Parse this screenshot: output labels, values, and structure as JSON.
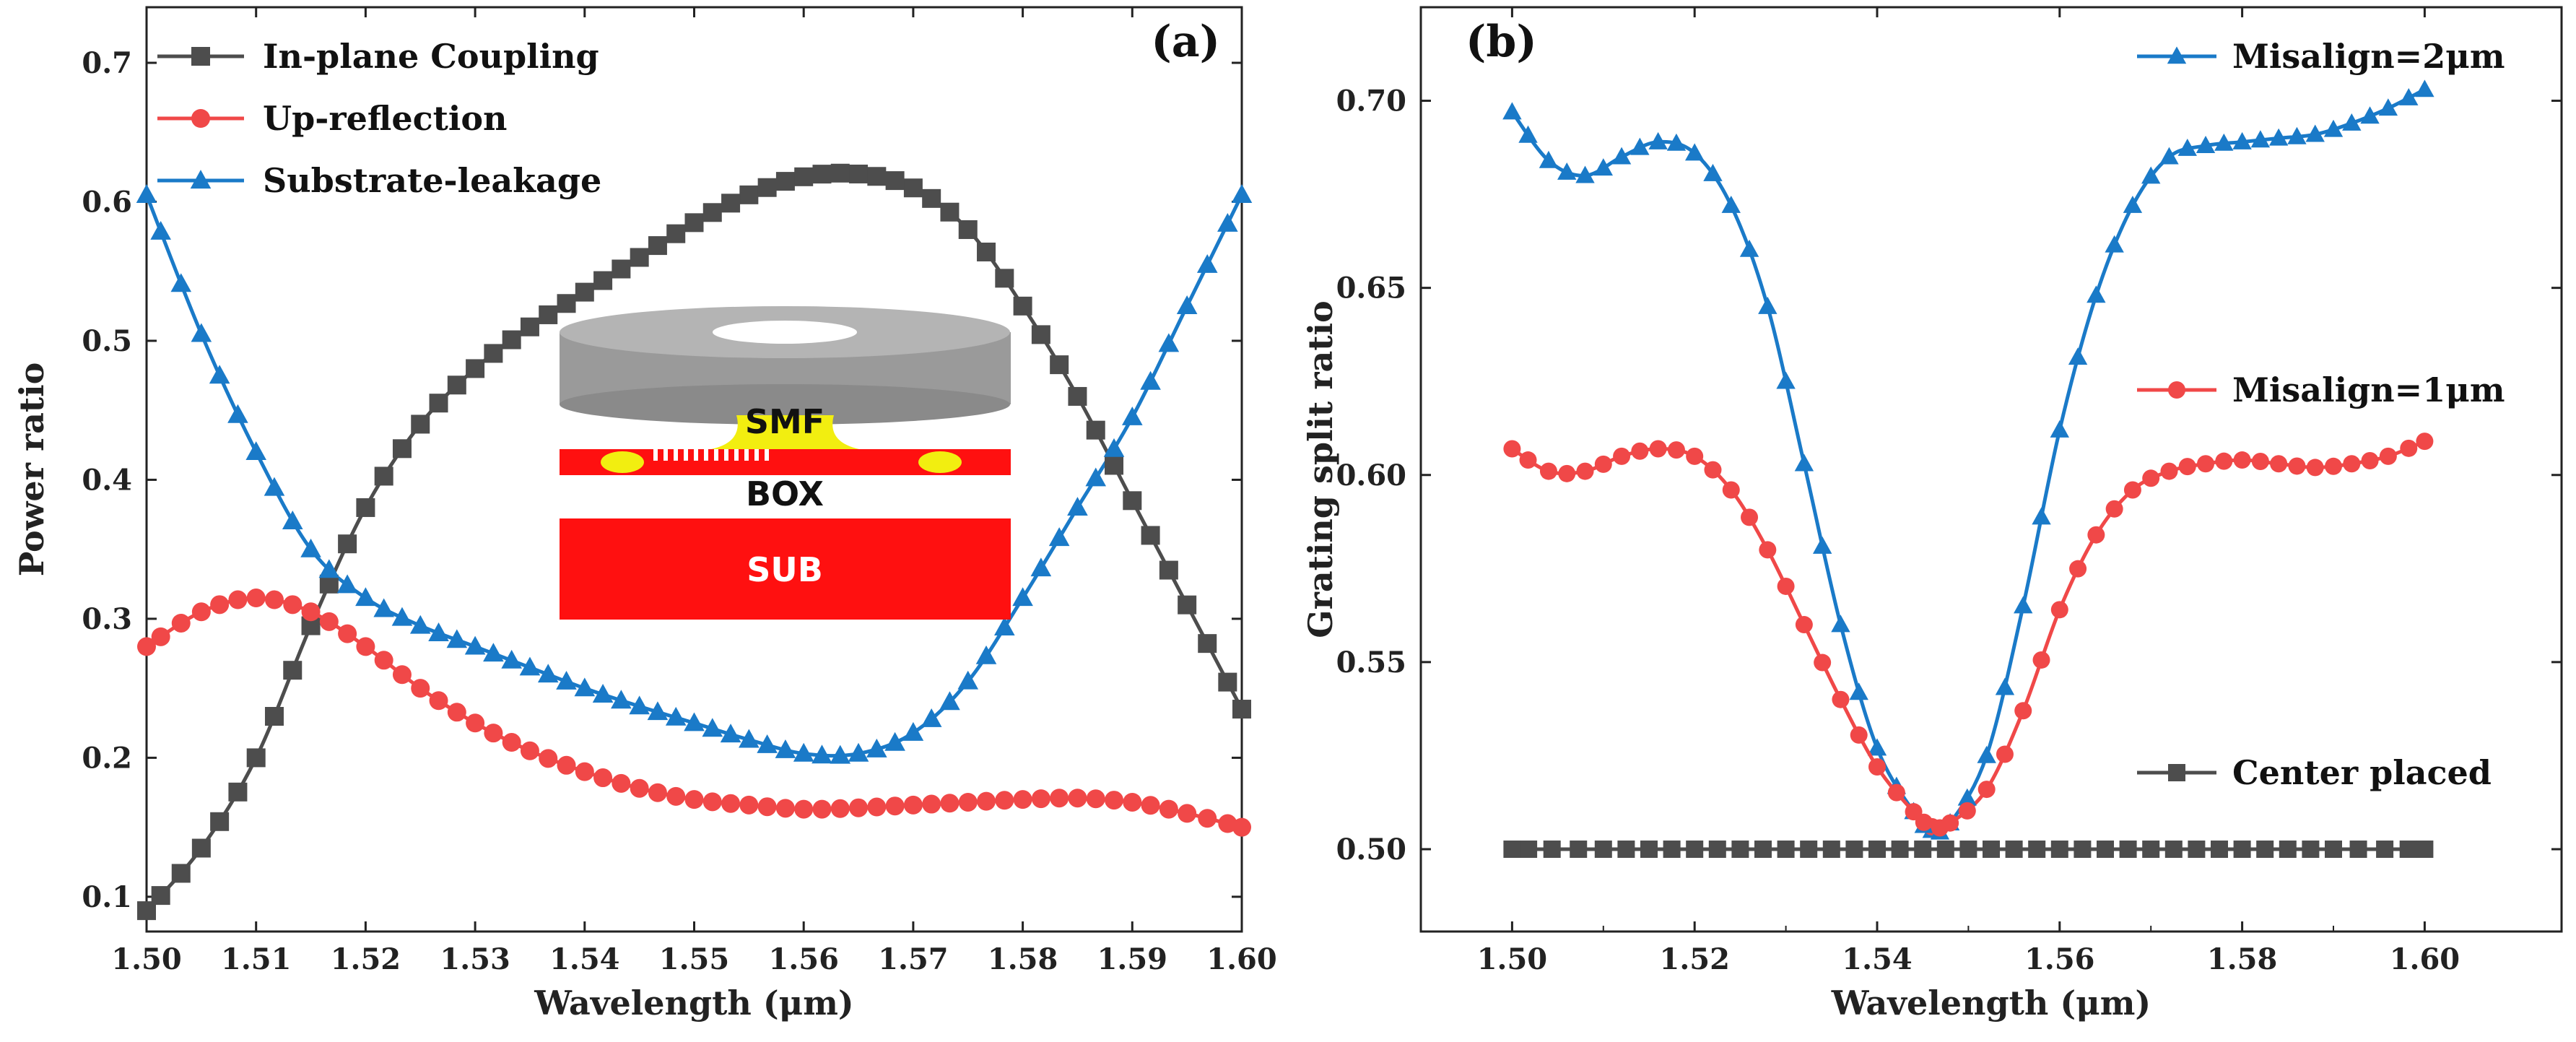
{
  "colors": {
    "gray": "#4d4d4d",
    "red": "#f04848",
    "blue": "#1a7ac8",
    "inset_red": "#ff1010",
    "inset_gray": "#9a9a9a",
    "inset_yellow": "#f2ee10"
  },
  "chart_data": [
    {
      "type": "line",
      "panel_label": "(a)",
      "xlabel": "Wavelength (μm)",
      "ylabel": "Power ratio",
      "xlim": [
        1.5,
        1.6
      ],
      "ylim": [
        0.075,
        0.74
      ],
      "xticks": [
        "1.50",
        "1.51",
        "1.52",
        "1.53",
        "1.54",
        "1.55",
        "1.56",
        "1.57",
        "1.58",
        "1.59",
        "1.60"
      ],
      "yticks": [
        "0.1",
        "0.2",
        "0.3",
        "0.4",
        "0.5",
        "0.6",
        "0.7"
      ],
      "grid": false,
      "legend_position": "top-left",
      "inset": {
        "labels": [
          "SMF",
          "BOX",
          "SUB"
        ]
      },
      "series": [
        {
          "name": "In-plane Coupling",
          "marker": "square",
          "color": "#4d4d4d",
          "points": [
            [
              1.5,
              0.09
            ],
            [
              1.505,
              0.135
            ],
            [
              1.51,
              0.2
            ],
            [
              1.515,
              0.295
            ],
            [
              1.52,
              0.38
            ],
            [
              1.525,
              0.44
            ],
            [
              1.53,
              0.48
            ],
            [
              1.535,
              0.51
            ],
            [
              1.54,
              0.535
            ],
            [
              1.545,
              0.56
            ],
            [
              1.55,
              0.585
            ],
            [
              1.555,
              0.605
            ],
            [
              1.56,
              0.618
            ],
            [
              1.565,
              0.62
            ],
            [
              1.57,
              0.61
            ],
            [
              1.575,
              0.58
            ],
            [
              1.58,
              0.525
            ],
            [
              1.585,
              0.46
            ],
            [
              1.59,
              0.385
            ],
            [
              1.595,
              0.31
            ],
            [
              1.6,
              0.235
            ]
          ]
        },
        {
          "name": "Up-reflection",
          "marker": "circle",
          "color": "#f04848",
          "points": [
            [
              1.5,
              0.28
            ],
            [
              1.505,
              0.305
            ],
            [
              1.51,
              0.315
            ],
            [
              1.515,
              0.305
            ],
            [
              1.52,
              0.28
            ],
            [
              1.525,
              0.25
            ],
            [
              1.53,
              0.225
            ],
            [
              1.535,
              0.205
            ],
            [
              1.54,
              0.19
            ],
            [
              1.545,
              0.178
            ],
            [
              1.55,
              0.17
            ],
            [
              1.555,
              0.166
            ],
            [
              1.56,
              0.163
            ],
            [
              1.565,
              0.164
            ],
            [
              1.57,
              0.166
            ],
            [
              1.575,
              0.168
            ],
            [
              1.58,
              0.17
            ],
            [
              1.585,
              0.171
            ],
            [
              1.59,
              0.168
            ],
            [
              1.595,
              0.16
            ],
            [
              1.6,
              0.15
            ]
          ]
        },
        {
          "name": "Substrate-leakage",
          "marker": "triangle",
          "color": "#1a7ac8",
          "points": [
            [
              1.5,
              0.605
            ],
            [
              1.505,
              0.505
            ],
            [
              1.51,
              0.42
            ],
            [
              1.515,
              0.35
            ],
            [
              1.52,
              0.315
            ],
            [
              1.525,
              0.295
            ],
            [
              1.53,
              0.28
            ],
            [
              1.535,
              0.265
            ],
            [
              1.54,
              0.25
            ],
            [
              1.545,
              0.237
            ],
            [
              1.55,
              0.225
            ],
            [
              1.555,
              0.213
            ],
            [
              1.56,
              0.203
            ],
            [
              1.565,
              0.203
            ],
            [
              1.57,
              0.218
            ],
            [
              1.575,
              0.255
            ],
            [
              1.58,
              0.315
            ],
            [
              1.585,
              0.38
            ],
            [
              1.59,
              0.445
            ],
            [
              1.595,
              0.525
            ],
            [
              1.6,
              0.605
            ]
          ]
        }
      ]
    },
    {
      "type": "line",
      "panel_label": "(b)",
      "xlabel": "Wavelength (μm)",
      "ylabel": "Grating split ratio",
      "xlim": [
        1.49,
        1.615
      ],
      "ylim": [
        0.478,
        0.725
      ],
      "xticks": [
        "1.50",
        "1.52",
        "1.54",
        "1.56",
        "1.58",
        "1.60"
      ],
      "yticks": [
        "0.50",
        "0.55",
        "0.60",
        "0.65",
        "0.70"
      ],
      "grid": false,
      "series": [
        {
          "name": "Misalign=2μm",
          "marker": "triangle",
          "color": "#1a7ac8",
          "label_position": "top-right",
          "points": [
            [
              1.5,
              0.697
            ],
            [
              1.504,
              0.684
            ],
            [
              1.508,
              0.68
            ],
            [
              1.512,
              0.685
            ],
            [
              1.516,
              0.689
            ],
            [
              1.52,
              0.686
            ],
            [
              1.524,
              0.672
            ],
            [
              1.528,
              0.645
            ],
            [
              1.532,
              0.603
            ],
            [
              1.536,
              0.56
            ],
            [
              1.54,
              0.527
            ],
            [
              1.544,
              0.51
            ],
            [
              1.546,
              0.505
            ],
            [
              1.548,
              0.507
            ],
            [
              1.552,
              0.525
            ],
            [
              1.556,
              0.565
            ],
            [
              1.56,
              0.612
            ],
            [
              1.564,
              0.648
            ],
            [
              1.568,
              0.672
            ],
            [
              1.572,
              0.685
            ],
            [
              1.576,
              0.688
            ],
            [
              1.58,
              0.689
            ],
            [
              1.584,
              0.69
            ],
            [
              1.588,
              0.691
            ],
            [
              1.592,
              0.694
            ],
            [
              1.596,
              0.698
            ],
            [
              1.6,
              0.703
            ]
          ]
        },
        {
          "name": "Misalign=1μm",
          "marker": "circle",
          "color": "#f04848",
          "label_position": "middle-right",
          "points": [
            [
              1.5,
              0.607
            ],
            [
              1.504,
              0.601
            ],
            [
              1.508,
              0.601
            ],
            [
              1.512,
              0.605
            ],
            [
              1.516,
              0.607
            ],
            [
              1.52,
              0.605
            ],
            [
              1.524,
              0.596
            ],
            [
              1.528,
              0.58
            ],
            [
              1.532,
              0.56
            ],
            [
              1.536,
              0.54
            ],
            [
              1.54,
              0.522
            ],
            [
              1.544,
              0.51
            ],
            [
              1.546,
              0.506
            ],
            [
              1.548,
              0.507
            ],
            [
              1.552,
              0.516
            ],
            [
              1.556,
              0.537
            ],
            [
              1.56,
              0.564
            ],
            [
              1.564,
              0.584
            ],
            [
              1.568,
              0.596
            ],
            [
              1.572,
              0.601
            ],
            [
              1.576,
              0.603
            ],
            [
              1.58,
              0.604
            ],
            [
              1.584,
              0.603
            ],
            [
              1.588,
              0.602
            ],
            [
              1.592,
              0.603
            ],
            [
              1.596,
              0.605
            ],
            [
              1.6,
              0.609
            ]
          ]
        },
        {
          "name": "Center placed",
          "marker": "square",
          "color": "#4d4d4d",
          "label_position": "bottom-right",
          "points": [
            [
              1.5,
              0.5
            ],
            [
              1.51,
              0.5
            ],
            [
              1.52,
              0.5
            ],
            [
              1.53,
              0.5
            ],
            [
              1.54,
              0.5
            ],
            [
              1.55,
              0.5
            ],
            [
              1.56,
              0.5
            ],
            [
              1.57,
              0.5
            ],
            [
              1.58,
              0.5
            ],
            [
              1.59,
              0.5
            ],
            [
              1.6,
              0.5
            ]
          ]
        }
      ]
    }
  ]
}
